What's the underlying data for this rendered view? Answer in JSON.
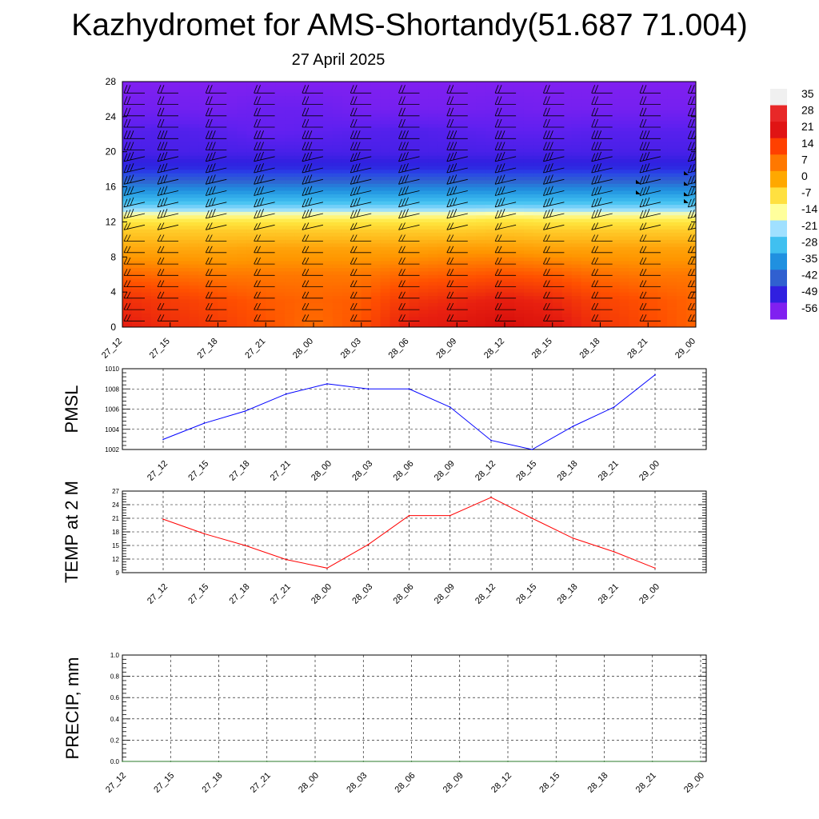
{
  "title": "Kazhydromet for AMS-Shortandy(51.687 71.004)",
  "subtitle": "27 April 2025",
  "chart_data": [
    {
      "type": "heatmap",
      "name": "temperature-height cross-section",
      "x_ticks": [
        "27_12",
        "27_15",
        "27_18",
        "27_21",
        "28_00",
        "28_03",
        "28_06",
        "28_09",
        "28_12",
        "28_15",
        "28_18",
        "28_21",
        "29_00"
      ],
      "y_ticks": [
        0,
        4,
        8,
        12,
        16,
        20,
        24,
        28
      ],
      "ylim": [
        0,
        28
      ],
      "colorbar": {
        "labels": [
          "35",
          "28",
          "21",
          "14",
          "7",
          "0",
          "-7",
          "-14",
          "-21",
          "-28",
          "-35",
          "-42",
          "-49",
          "-56"
        ],
        "colors": [
          "#f0f0f0",
          "#e82828",
          "#e01414",
          "#ff4000",
          "#ff7800",
          "#ffa800",
          "#ffe040",
          "#ffff9c",
          "#a0e0ff",
          "#40c0f0",
          "#2090e0",
          "#3060d0",
          "#3020e0",
          "#8020f0"
        ]
      },
      "overlay": "wind barbs",
      "profile_rows": [
        {
          "z": 0,
          "values": [
            22,
            19,
            17,
            14,
            11,
            14,
            22,
            24,
            27,
            24,
            18,
            15,
            12
          ]
        },
        {
          "z": 3,
          "values": [
            19,
            17,
            15,
            13,
            12,
            13,
            18,
            20,
            22,
            20,
            16,
            14,
            12
          ]
        },
        {
          "z": 6,
          "values": [
            12,
            11,
            10,
            10,
            10,
            10,
            12,
            13,
            14,
            13,
            11,
            10,
            10
          ]
        },
        {
          "z": 9,
          "values": [
            4,
            4,
            4,
            5,
            5,
            5,
            5,
            6,
            6,
            5,
            5,
            5,
            5
          ]
        },
        {
          "z": 11,
          "values": [
            -2,
            -2,
            -2,
            -2,
            -2,
            -2,
            -2,
            -2,
            -1,
            -2,
            -2,
            -2,
            -2
          ]
        },
        {
          "z": 12.5,
          "values": [
            -9,
            -9,
            -9,
            -9,
            -9,
            -9,
            -9,
            -9,
            -8,
            -9,
            -9,
            -9,
            -9
          ]
        },
        {
          "z": 14,
          "values": [
            -20,
            -20,
            -20,
            -20,
            -20,
            -20,
            -20,
            -20,
            -20,
            -20,
            -20,
            -20,
            -20
          ]
        },
        {
          "z": 16,
          "values": [
            -32,
            -32,
            -32,
            -32,
            -32,
            -32,
            -32,
            -32,
            -32,
            -32,
            -32,
            -32,
            -32
          ]
        },
        {
          "z": 18,
          "values": [
            -48,
            -48,
            -48,
            -48,
            -48,
            -48,
            -48,
            -48,
            -48,
            -48,
            -48,
            -48,
            -48
          ]
        },
        {
          "z": 20,
          "values": [
            -53,
            -53,
            -53,
            -53,
            -53,
            -53,
            -53,
            -53,
            -53,
            -53,
            -53,
            -53,
            -53
          ]
        },
        {
          "z": 22.5,
          "values": [
            -55,
            -54,
            -55,
            -57,
            -56,
            -55,
            -54,
            -55,
            -56,
            -56,
            -55,
            -55,
            -55
          ]
        },
        {
          "z": 25,
          "values": [
            -60,
            -59,
            -60,
            -58,
            -58,
            -60,
            -60,
            -60,
            -59,
            -60,
            -60,
            -60,
            -60
          ]
        },
        {
          "z": 28,
          "values": [
            -62,
            -62,
            -62,
            -62,
            -62,
            -62,
            -62,
            -62,
            -62,
            -62,
            -62,
            -62,
            -62
          ]
        }
      ]
    },
    {
      "type": "line",
      "ylabel": "PMSL",
      "categories": [
        "27_12",
        "27_15",
        "27_18",
        "27_21",
        "28_00",
        "28_03",
        "28_06",
        "28_09",
        "28_12",
        "28_15",
        "28_18",
        "28_21",
        "29_00"
      ],
      "series": [
        {
          "values": [
            1003.0,
            1004.6,
            1005.8,
            1007.5,
            1008.5,
            1008.0,
            1008.0,
            1006.2,
            1002.9,
            1002.0,
            1004.3,
            1006.2,
            1009.4
          ],
          "color": "#0000ff"
        }
      ],
      "ylim": [
        1002,
        1010
      ],
      "yticks": [
        "1002",
        "1004",
        "1006",
        "1008",
        "1010"
      ]
    },
    {
      "type": "line",
      "ylabel": "TEMP at 2 M",
      "categories": [
        "27_12",
        "27_15",
        "27_18",
        "27_21",
        "28_00",
        "28_03",
        "28_06",
        "28_09",
        "28_12",
        "28_15",
        "28_18",
        "28_21",
        "29_00"
      ],
      "series": [
        {
          "values": [
            20.8,
            17.6,
            15.0,
            11.9,
            10.0,
            15.2,
            21.6,
            21.6,
            25.6,
            21.0,
            16.6,
            13.6,
            10.0
          ],
          "color": "#ff0000"
        }
      ],
      "ylim": [
        9,
        27
      ],
      "yticks": [
        "9",
        "12",
        "15",
        "18",
        "21",
        "24",
        "27"
      ]
    },
    {
      "type": "line",
      "ylabel": "PRECIP, mm",
      "categories": [
        "27_12",
        "27_15",
        "27_18",
        "27_21",
        "28_00",
        "28_03",
        "28_06",
        "28_09",
        "28_12",
        "28_15",
        "28_18",
        "28_21",
        "29_00"
      ],
      "series": [
        {
          "values": [
            0,
            0,
            0,
            0,
            0,
            0,
            0,
            0,
            0,
            0,
            0,
            0,
            0
          ],
          "color": "#2a7a2a"
        }
      ],
      "ylim": [
        0,
        1.0
      ],
      "yticks": [
        "0.0",
        "0.2",
        "0.4",
        "0.6",
        "0.8",
        "1.0"
      ]
    }
  ]
}
